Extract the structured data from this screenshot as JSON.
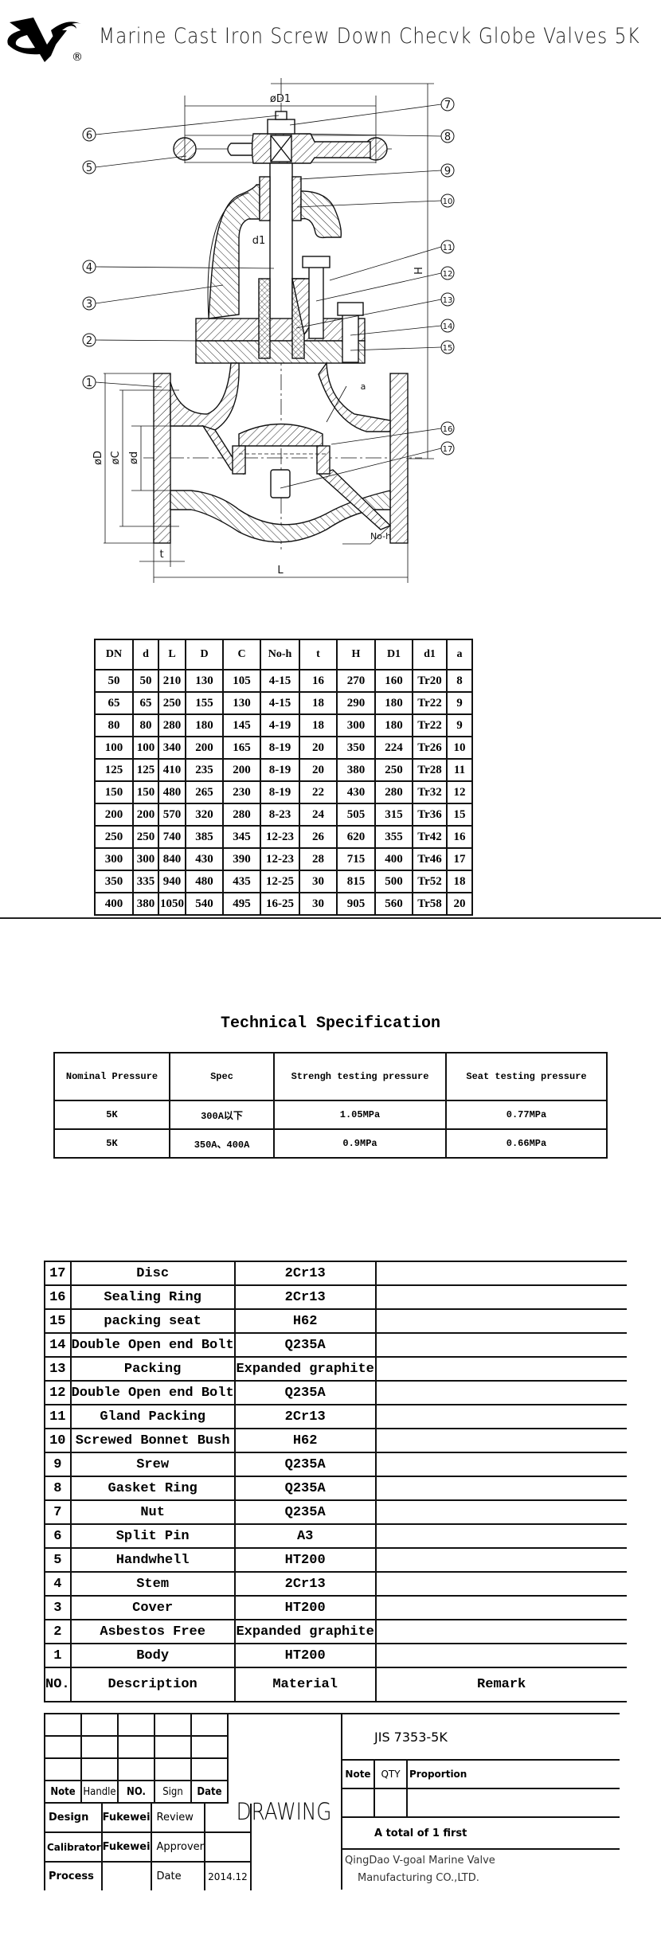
{
  "header": {
    "title": "Marine Cast Iron Screw Down Checvk Globe Valves 5K",
    "logo_text": "VG",
    "registered_mark": "®"
  },
  "drawing": {
    "callouts": [
      "1",
      "2",
      "3",
      "4",
      "5",
      "6",
      "7",
      "8",
      "9",
      "10",
      "11",
      "12",
      "13",
      "14",
      "15",
      "16",
      "17"
    ],
    "dimensions": {
      "D1": "øD1",
      "d1": "d1",
      "H": "H",
      "D": "øD",
      "C": "øC",
      "d": "ød",
      "t": "t",
      "L": "L",
      "Noh": "No-h",
      "a": "a"
    }
  },
  "dimension_table": {
    "headers": [
      "DN",
      "d",
      "L",
      "D",
      "C",
      "No-h",
      "t",
      "H",
      "D1",
      "d1",
      "a"
    ],
    "rows": [
      [
        "50",
        "50",
        "210",
        "130",
        "105",
        "4-15",
        "16",
        "270",
        "160",
        "Tr20",
        "8"
      ],
      [
        "65",
        "65",
        "250",
        "155",
        "130",
        "4-15",
        "18",
        "290",
        "180",
        "Tr22",
        "9"
      ],
      [
        "80",
        "80",
        "280",
        "180",
        "145",
        "4-19",
        "18",
        "300",
        "180",
        "Tr22",
        "9"
      ],
      [
        "100",
        "100",
        "340",
        "200",
        "165",
        "8-19",
        "20",
        "350",
        "224",
        "Tr26",
        "10"
      ],
      [
        "125",
        "125",
        "410",
        "235",
        "200",
        "8-19",
        "20",
        "380",
        "250",
        "Tr28",
        "11"
      ],
      [
        "150",
        "150",
        "480",
        "265",
        "230",
        "8-19",
        "22",
        "430",
        "280",
        "Tr32",
        "12"
      ],
      [
        "200",
        "200",
        "570",
        "320",
        "280",
        "8-23",
        "24",
        "505",
        "315",
        "Tr36",
        "15"
      ],
      [
        "250",
        "250",
        "740",
        "385",
        "345",
        "12-23",
        "26",
        "620",
        "355",
        "Tr42",
        "16"
      ],
      [
        "300",
        "300",
        "840",
        "430",
        "390",
        "12-23",
        "28",
        "715",
        "400",
        "Tr46",
        "17"
      ],
      [
        "350",
        "335",
        "940",
        "480",
        "435",
        "12-25",
        "30",
        "815",
        "500",
        "Tr52",
        "18"
      ],
      [
        "400",
        "380",
        "1050",
        "540",
        "495",
        "16-25",
        "30",
        "905",
        "560",
        "Tr58",
        "20"
      ]
    ]
  },
  "spec": {
    "title": "Technical Specification",
    "headers": [
      "Nominal Pressure",
      "Spec",
      "Strengh testing pressure",
      "Seat testing pressure"
    ],
    "rows": [
      [
        "5K",
        "300A以下",
        "1.05MPa",
        "0.77MPa"
      ],
      [
        "5K",
        "350A、400A",
        "0.9MPa",
        "0.66MPa"
      ]
    ]
  },
  "parts": {
    "headers": [
      "NO.",
      "Description",
      "Material",
      "Remark"
    ],
    "rows": [
      [
        "17",
        "Disc",
        "2Cr13",
        ""
      ],
      [
        "16",
        "Sealing Ring",
        "2Cr13",
        ""
      ],
      [
        "15",
        "packing seat",
        "H62",
        ""
      ],
      [
        "14",
        "Double Open end Bolt",
        "Q235A",
        ""
      ],
      [
        "13",
        "Packing",
        "Expanded graphite",
        ""
      ],
      [
        "12",
        "Double Open end Bolt",
        "Q235A",
        ""
      ],
      [
        "11",
        "Gland Packing",
        "2Cr13",
        ""
      ],
      [
        "10",
        "Screwed Bonnet Bush",
        "H62",
        ""
      ],
      [
        "9",
        "Srew",
        "Q235A",
        ""
      ],
      [
        "8",
        "Gasket Ring",
        "Q235A",
        ""
      ],
      [
        "7",
        "Nut",
        "Q235A",
        ""
      ],
      [
        "6",
        "Split Pin",
        "A3",
        ""
      ],
      [
        "5",
        "Handwhell",
        "HT200",
        ""
      ],
      [
        "4",
        "Stem",
        "2Cr13",
        ""
      ],
      [
        "3",
        "Cover",
        "HT200",
        ""
      ],
      [
        "2",
        "Asbestos Free",
        "Expanded graphite",
        ""
      ],
      [
        "1",
        "Body",
        "HT200",
        ""
      ]
    ]
  },
  "title_block": {
    "revision_headers": [
      "Note",
      "Handle",
      "NO.",
      "Sign",
      "Date"
    ],
    "design_label": "Design",
    "design_value": "Fukewei",
    "review_label": "Review",
    "calibrator_label": "Calibrator",
    "calibrator_value": "Fukewei",
    "approver_label": "Approver",
    "process_label": "Process",
    "date_label": "Date",
    "date_value": "2014.12",
    "drawing_label": "DRAWING",
    "standard": "JIS 7353-5K",
    "note_label": "Note",
    "qty_label": "QTY",
    "proportion_label": "Proportion",
    "sheets": "A total of 1 first",
    "company_line1": "QingDao V-goal Marine Valve",
    "company_line2": "Manufacturing CO.,LTD."
  }
}
